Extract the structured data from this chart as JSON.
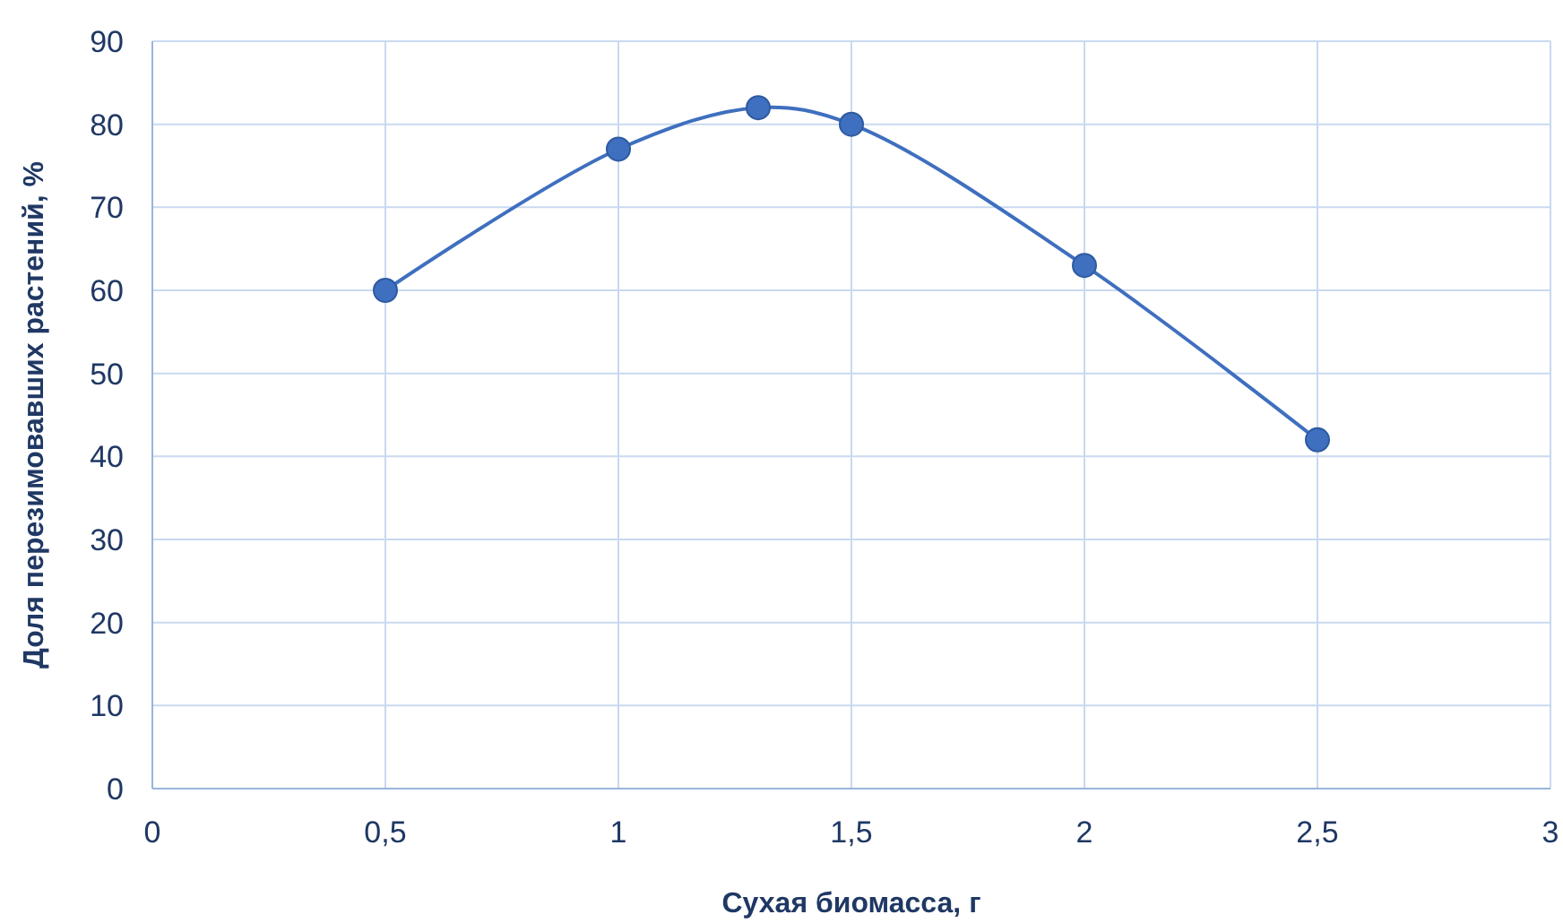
{
  "chart_data": {
    "type": "line",
    "xlabel": "Сухая биомасса, г",
    "ylabel": "Доля перезимовавших растений, %",
    "x": [
      0.5,
      1,
      1.3,
      1.5,
      2,
      2.5
    ],
    "series": [
      {
        "color": "#3f6fbf",
        "values": [
          60,
          77,
          82,
          80,
          63,
          42
        ]
      }
    ],
    "xlim": [
      0,
      3
    ],
    "xticks": [
      0,
      {
        "value": 0.5,
        "label": "0,5"
      },
      1,
      {
        "value": 1.5,
        "label": "1,5"
      },
      2,
      {
        "value": 2.5,
        "label": "2,5"
      },
      3
    ],
    "ylim": [
      0,
      90
    ],
    "yticks": [
      0,
      10,
      20,
      30,
      40,
      50,
      60,
      70,
      80,
      90
    ],
    "grid": true,
    "marker": "circle",
    "line_style": "solid"
  }
}
